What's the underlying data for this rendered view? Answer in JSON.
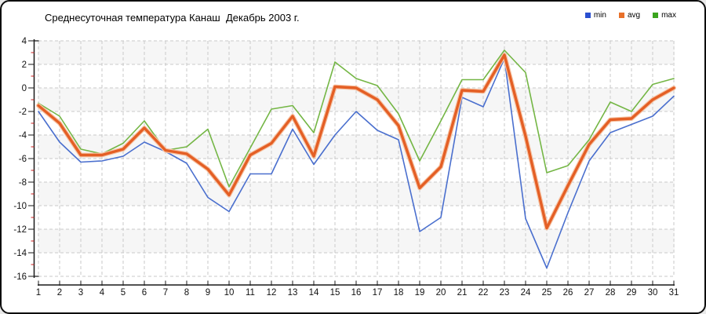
{
  "title": "Среднесуточная температура Канаш  Декабрь 2003 г.",
  "legend": [
    {
      "label": "min",
      "color": "#2a4fd0"
    },
    {
      "label": "avg",
      "color": "#e8702a"
    },
    {
      "label": "max",
      "color": "#3aa41e"
    }
  ],
  "chart_data": {
    "type": "line",
    "title": "Среднесуточная температура Канаш  Декабрь 2003 г.",
    "xlabel": "",
    "ylabel": "",
    "x": [
      1,
      2,
      3,
      4,
      5,
      6,
      7,
      8,
      9,
      10,
      11,
      12,
      13,
      14,
      15,
      16,
      17,
      18,
      19,
      20,
      21,
      22,
      23,
      24,
      25,
      26,
      27,
      28,
      29,
      30,
      31
    ],
    "ylim": [
      -16,
      4
    ],
    "ytick_step": 2,
    "grid": true,
    "legend_position": "top-right",
    "series": [
      {
        "name": "min",
        "color": "#4a6fce",
        "width": 1.6,
        "values": [
          -2.0,
          -4.6,
          -6.3,
          -6.2,
          -5.8,
          -4.6,
          -5.4,
          -6.4,
          -9.3,
          -10.5,
          -7.3,
          -7.3,
          -3.5,
          -6.5,
          -4.0,
          -2.0,
          -3.6,
          -4.4,
          -12.2,
          -11.0,
          -0.8,
          -1.6,
          2.5,
          -11.1,
          -15.3,
          -10.6,
          -6.2,
          -3.8,
          -3.1,
          -2.4,
          -0.7
        ]
      },
      {
        "name": "avg",
        "color": "#e45f25",
        "halo": "#f6c3a4",
        "width": 3.4,
        "values": [
          -1.5,
          -3.0,
          -5.7,
          -5.7,
          -5.2,
          -3.4,
          -5.3,
          -5.6,
          -6.9,
          -9.1,
          -5.7,
          -4.7,
          -2.4,
          -5.8,
          0.1,
          0.0,
          -1.0,
          -3.2,
          -8.5,
          -6.7,
          -0.2,
          -0.3,
          2.8,
          -4.1,
          -11.9,
          -8.3,
          -4.8,
          -2.7,
          -2.6,
          -1.0,
          0.0
        ]
      },
      {
        "name": "max",
        "color": "#74b645",
        "width": 1.6,
        "values": [
          -1.3,
          -2.4,
          -5.2,
          -5.6,
          -4.7,
          -2.8,
          -5.3,
          -5.0,
          -3.5,
          -8.4,
          -5.1,
          -1.8,
          -1.5,
          -3.8,
          2.2,
          0.8,
          0.2,
          -2.2,
          -6.2,
          -2.8,
          0.7,
          0.7,
          3.2,
          1.3,
          -7.2,
          -6.6,
          -4.4,
          -1.2,
          -2.0,
          0.3,
          0.8
        ]
      }
    ],
    "style": {
      "band_color": "#f6f6f6",
      "grid_dash_color": "#c9c9c9",
      "axis_color": "#1a1a1a",
      "minor_tick_color": "#cc2222",
      "tick_label_color": "#111111"
    }
  }
}
